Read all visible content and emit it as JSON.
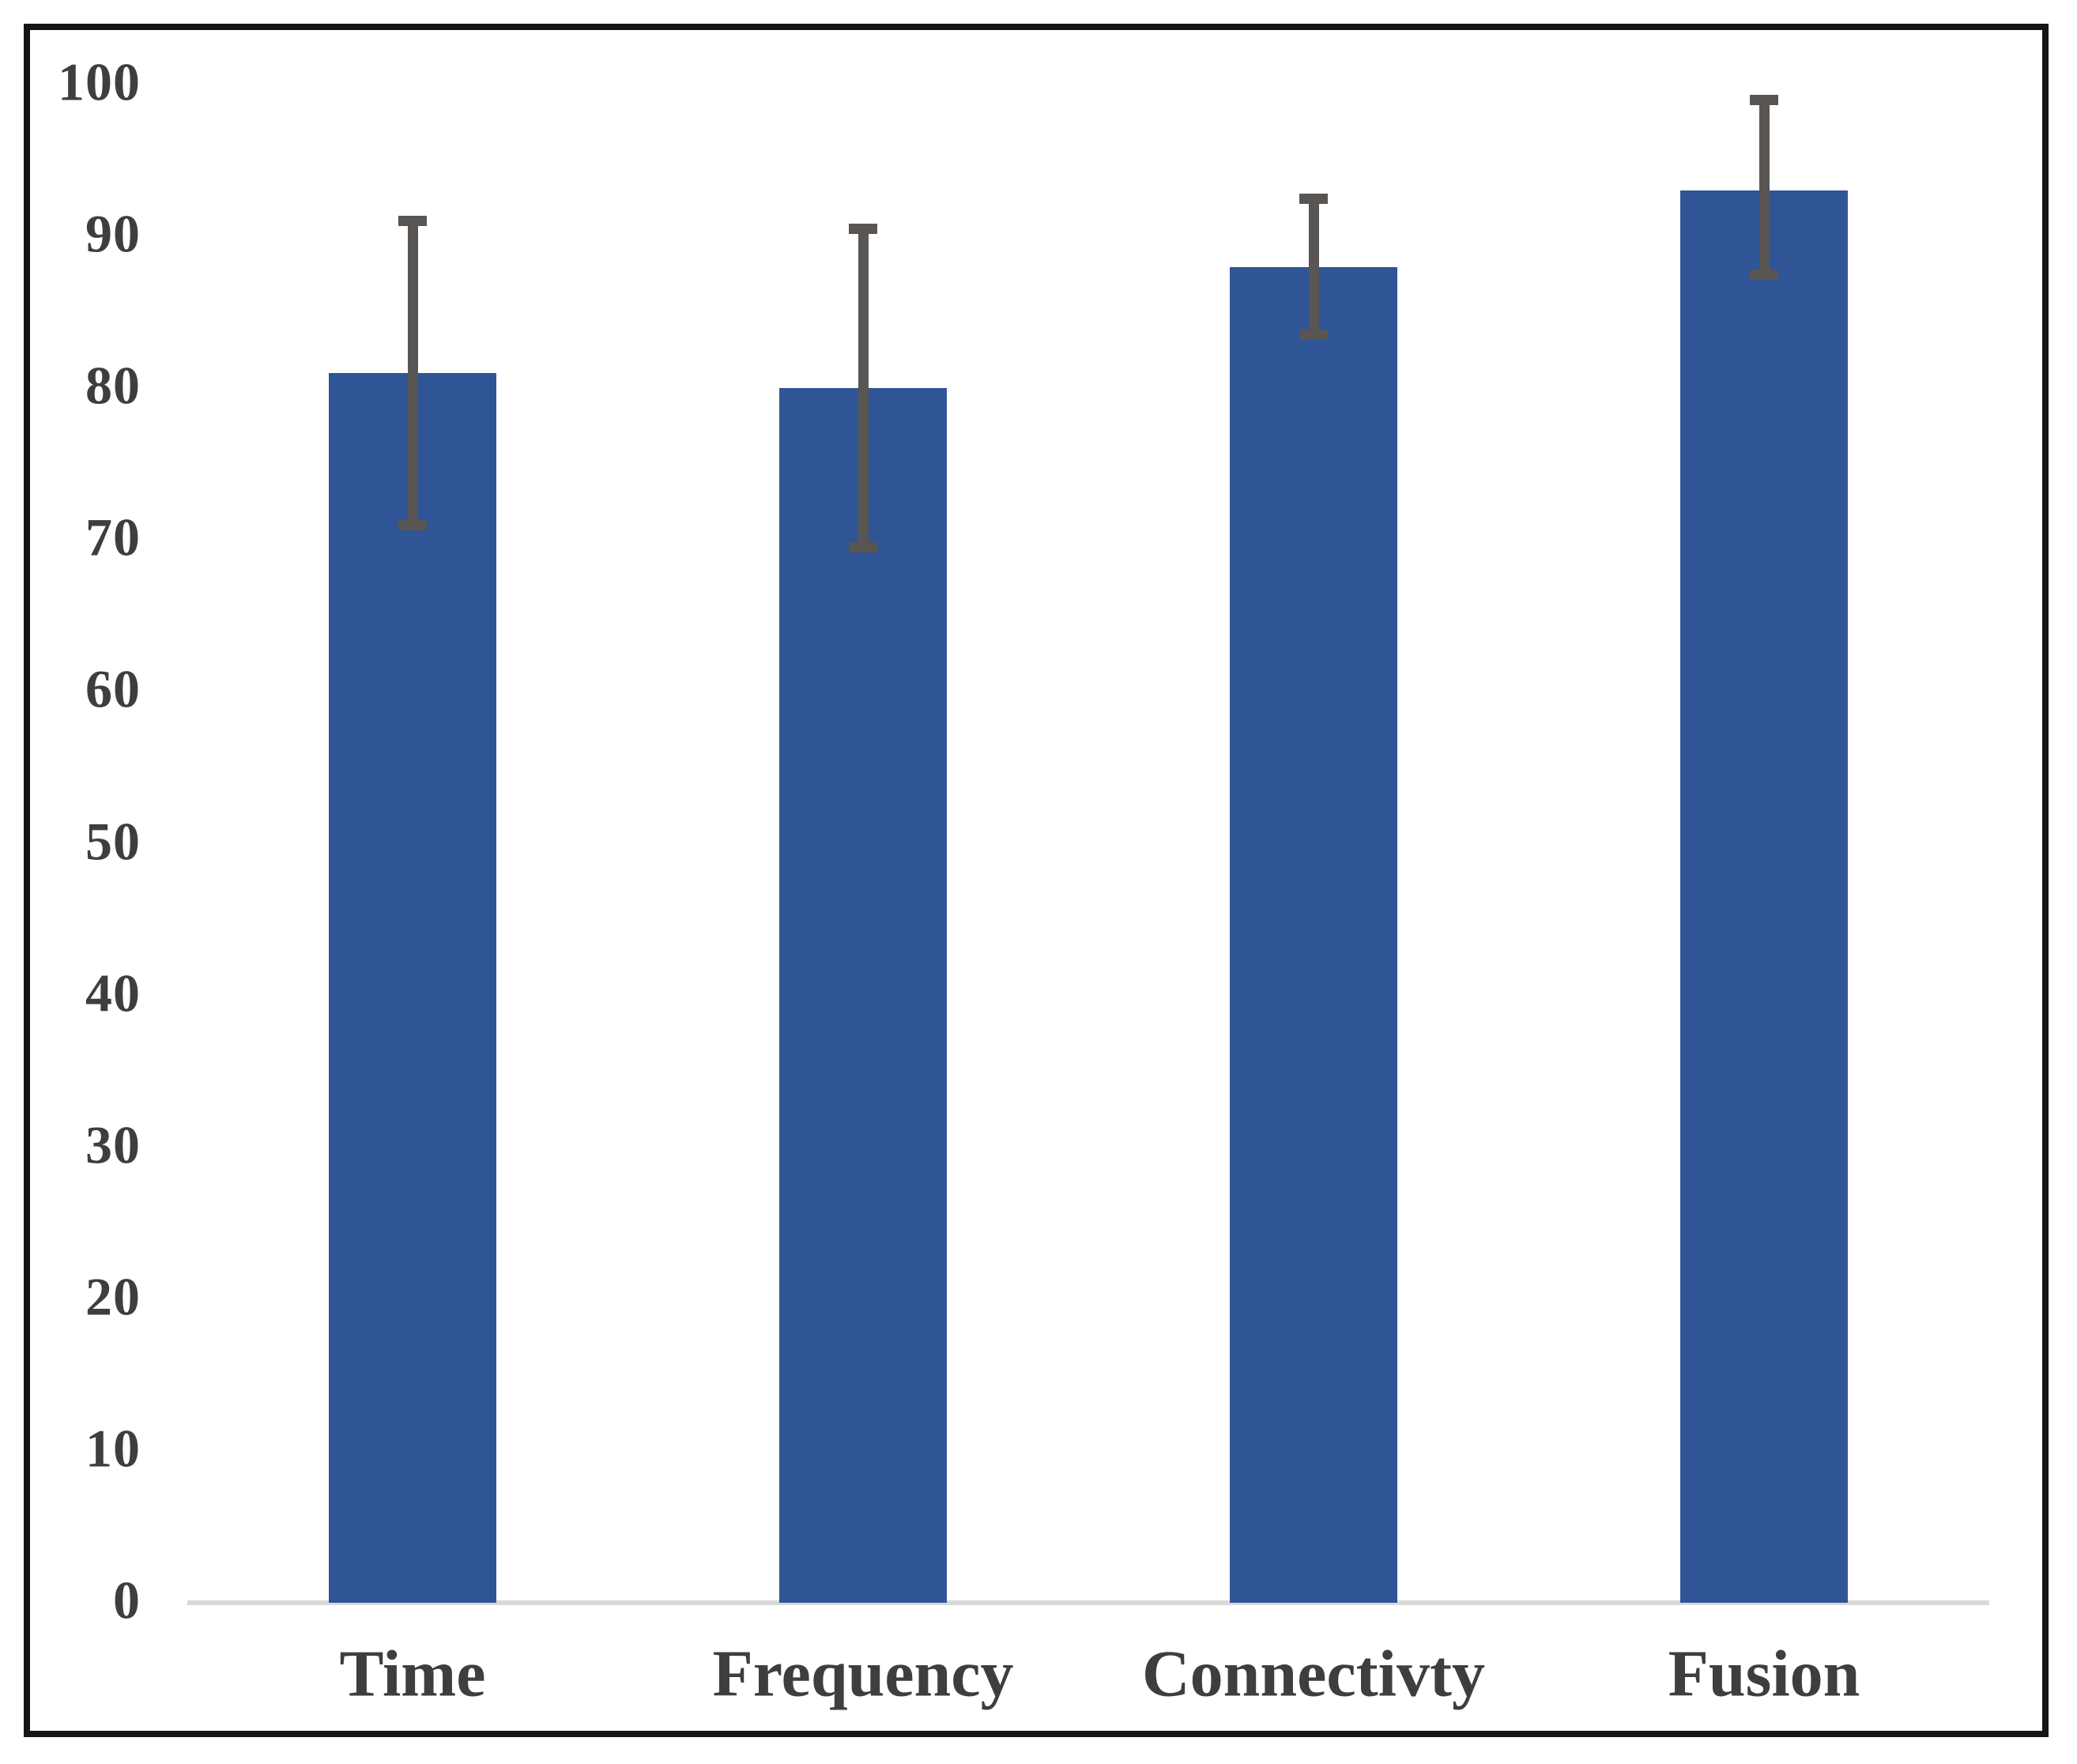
{
  "chart_data": {
    "type": "bar",
    "title": "",
    "xlabel": "",
    "ylabel": "",
    "categories": [
      "Time",
      "Frequency",
      "Connectivty",
      "Fusion"
    ],
    "values": [
      81,
      80,
      88,
      93
    ],
    "error_low": [
      71,
      69.5,
      83.5,
      87.5
    ],
    "error_high": [
      91,
      90.5,
      92.5,
      99
    ],
    "ylim": [
      0,
      100
    ],
    "yticks": [
      0,
      10,
      20,
      30,
      40,
      50,
      60,
      70,
      80,
      90,
      100
    ],
    "grid": false,
    "legend": "none",
    "colors": {
      "bar_fill": "#2F5596",
      "error_bar": "#585552",
      "tick_label": "#3E3E3E",
      "axis_line": "#D9D9D9",
      "frame_border": "#161616",
      "background": "#FFFFFF"
    }
  }
}
